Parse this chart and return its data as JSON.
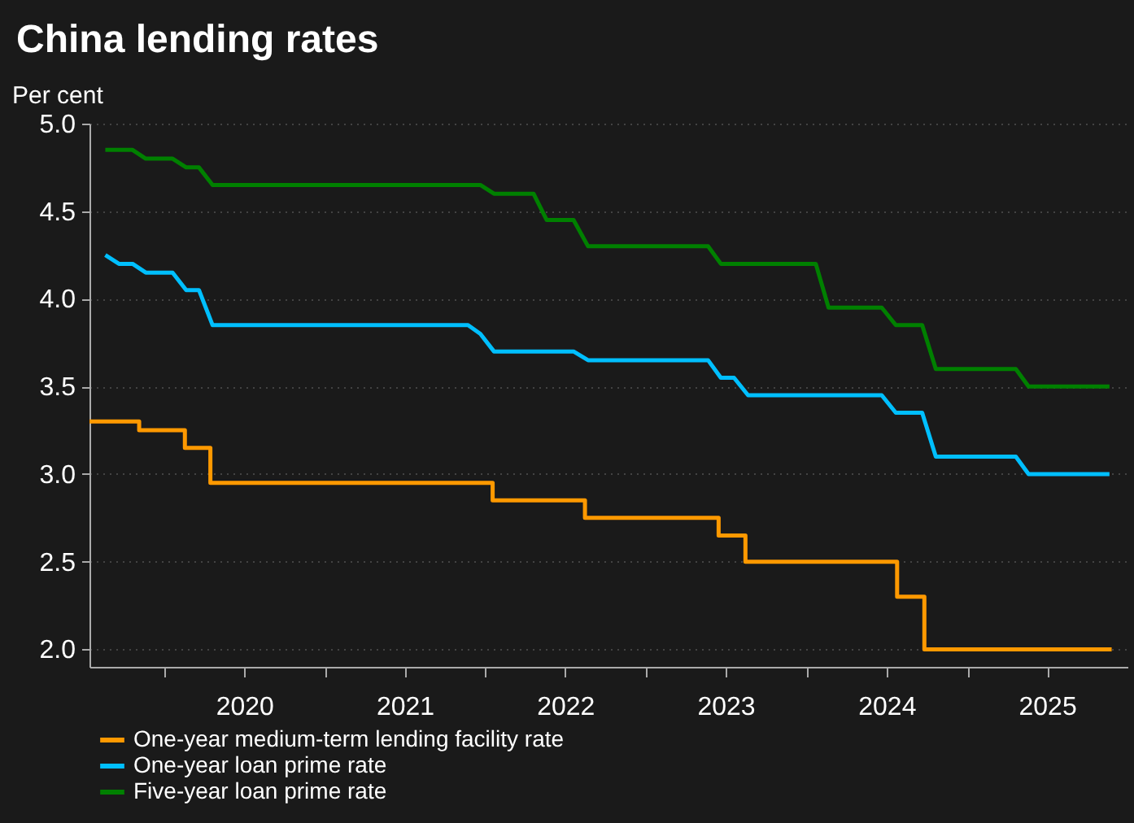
{
  "chart_data": {
    "type": "line",
    "title": "China lending rates",
    "ylabel": "Per cent",
    "xlim": [
      "2019-07-15",
      "2025-12-31"
    ],
    "xticks": [
      {
        "value": "2020-01-01",
        "label": null
      },
      {
        "value": "2020-07-01",
        "label": "2020"
      },
      {
        "value": "2021-01-01",
        "label": null
      },
      {
        "value": "2021-07-01",
        "label": "2021"
      },
      {
        "value": "2022-01-01",
        "label": null
      },
      {
        "value": "2022-07-01",
        "label": "2022"
      },
      {
        "value": "2023-01-01",
        "label": null
      },
      {
        "value": "2023-07-01",
        "label": "2023"
      },
      {
        "value": "2024-01-01",
        "label": null
      },
      {
        "value": "2024-07-01",
        "label": "2024"
      },
      {
        "value": "2025-01-01",
        "label": null
      },
      {
        "value": "2025-07-01",
        "label": "2025"
      }
    ],
    "ylim": [
      1.9,
      5.0
    ],
    "yticks": [
      {
        "value": 2,
        "label": "2.0"
      },
      {
        "value": 2.5,
        "label": "2.5"
      },
      {
        "value": 3,
        "label": "3.0"
      },
      {
        "value": 3.5,
        "label": "3.5"
      },
      {
        "value": 4,
        "label": "4.0"
      },
      {
        "value": 4.5,
        "label": "4.5"
      },
      {
        "value": 5,
        "label": "5.0"
      }
    ],
    "grid": "y",
    "legend": "bottom",
    "series": [
      {
        "name": "One-year medium-term lending facility rate",
        "color": "#ff9900",
        "type": "step",
        "x": [
          "2019-07-15",
          "2019-11-05",
          "2020-02-17",
          "2020-04-15",
          "2022-01-17",
          "2022-08-15",
          "2023-06-15",
          "2023-08-15",
          "2024-07-25",
          "2024-09-25",
          "2025-11-25"
        ],
        "values": [
          3.3,
          3.25,
          3.15,
          2.95,
          2.85,
          2.75,
          2.65,
          2.5,
          2.3,
          2.0,
          2.0
        ]
      },
      {
        "name": "One-year loan prime rate",
        "color": "#00bfff",
        "type": "line",
        "x": [
          "2019-08-20",
          "2019-09-20",
          "2019-10-21",
          "2019-11-20",
          "2020-01-20",
          "2020-02-20",
          "2020-03-20",
          "2020-04-20",
          "2021-11-22",
          "2021-12-20",
          "2022-01-20",
          "2022-07-20",
          "2022-08-22",
          "2023-05-22",
          "2023-06-20",
          "2023-07-20",
          "2023-08-21",
          "2024-06-20",
          "2024-07-22",
          "2024-09-20",
          "2024-10-21",
          "2025-04-21",
          "2025-05-20",
          "2025-11-20"
        ],
        "values": [
          4.25,
          4.2,
          4.2,
          4.15,
          4.15,
          4.05,
          4.05,
          3.85,
          3.85,
          3.8,
          3.7,
          3.7,
          3.65,
          3.65,
          3.55,
          3.55,
          3.45,
          3.45,
          3.35,
          3.35,
          3.1,
          3.1,
          3.0,
          3.0
        ]
      },
      {
        "name": "Five-year loan prime rate",
        "color": "#008000",
        "type": "line",
        "x": [
          "2019-08-20",
          "2019-10-21",
          "2019-11-20",
          "2020-01-20",
          "2020-02-20",
          "2020-03-20",
          "2020-04-20",
          "2021-12-20",
          "2022-01-20",
          "2022-04-20",
          "2022-05-20",
          "2022-07-20",
          "2022-08-22",
          "2023-05-22",
          "2023-06-20",
          "2024-01-22",
          "2024-02-20",
          "2024-06-20",
          "2024-07-22",
          "2024-09-20",
          "2024-10-21",
          "2025-04-21",
          "2025-05-20",
          "2025-11-20"
        ],
        "values": [
          4.85,
          4.85,
          4.8,
          4.8,
          4.75,
          4.75,
          4.65,
          4.65,
          4.6,
          4.6,
          4.45,
          4.45,
          4.3,
          4.3,
          4.2,
          4.2,
          3.95,
          3.95,
          3.85,
          3.85,
          3.6,
          3.6,
          3.5,
          3.5
        ]
      }
    ]
  }
}
